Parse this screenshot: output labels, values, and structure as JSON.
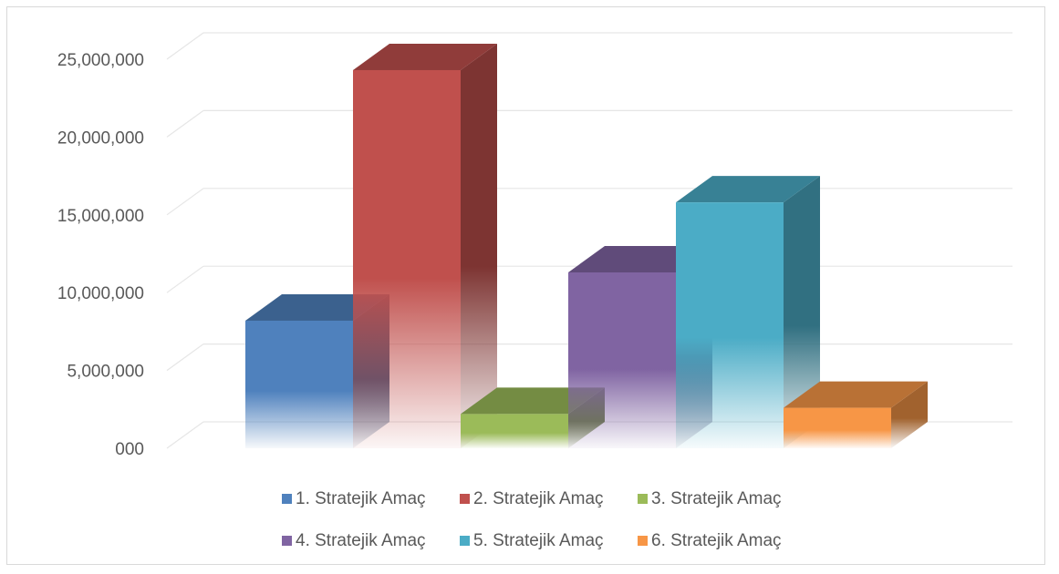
{
  "chart_data": {
    "type": "bar",
    "categories": [
      "1. Stratejik Amaç",
      "2. Stratejik Amaç",
      "3. Stratejik Amaç",
      "4. Stratejik Amaç",
      "5. Stratejik Amaç",
      "6. Stratejik Amaç"
    ],
    "values": [
      8200000,
      24300000,
      2200000,
      11300000,
      15800000,
      2600000
    ],
    "colors": [
      "#4f81bd",
      "#c0504d",
      "#9bbb59",
      "#8064a2",
      "#4bacc6",
      "#f79646"
    ],
    "ylim": [
      0,
      25000000
    ],
    "yticks": [
      0,
      5000000,
      10000000,
      15000000,
      20000000,
      25000000
    ],
    "ytick_labels": [
      "000",
      "5,000,000",
      "10,000,000",
      "15,000,000",
      "20,000,000",
      "25,000,000"
    ],
    "grid": true,
    "legend_position": "bottom",
    "style": "3d-column"
  }
}
